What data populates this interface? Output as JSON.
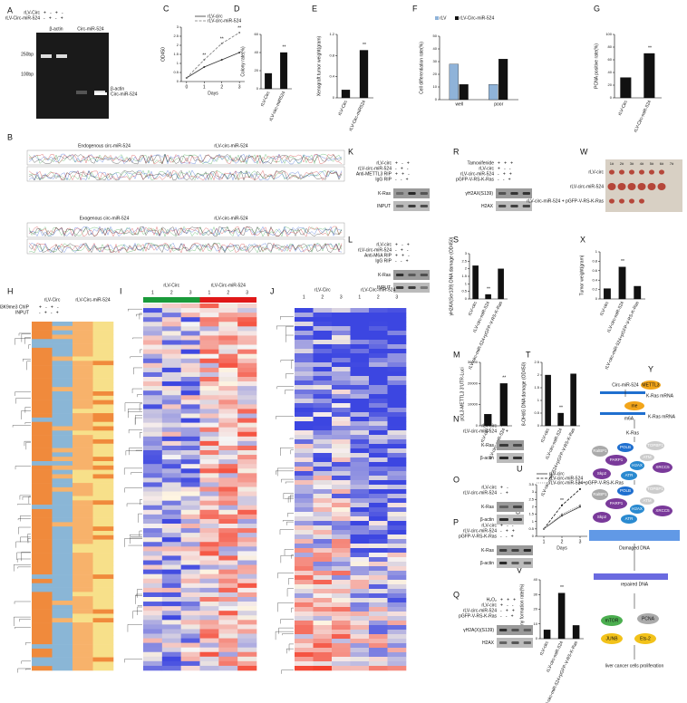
{
  "panel_letters": [
    "A",
    "C",
    "D",
    "E",
    "F",
    "G",
    "B",
    "K",
    "R",
    "W",
    "L",
    "S",
    "X",
    "H",
    "I",
    "J",
    "M",
    "T",
    "Y",
    "N",
    "O",
    "U",
    "P",
    "V",
    "Q"
  ],
  "chart_data": [
    {
      "type": "line",
      "ylabel": "OD450",
      "xlabel": "Days",
      "x": [
        0,
        1,
        2,
        3
      ],
      "xlim": [
        -0.3,
        3.3
      ],
      "xticks": [
        0,
        1,
        2,
        3
      ],
      "ylim": [
        0,
        3
      ],
      "yticks": [
        0,
        0.5,
        1,
        1.5,
        2,
        2.5,
        3
      ],
      "series": [
        {
          "name": "rLV-circ",
          "color": "#333333",
          "values": [
            0.2,
            0.8,
            1.2,
            1.6
          ]
        },
        {
          "name": "rLV-circ-miR-524",
          "color": "#777777",
          "values": [
            0.2,
            1.2,
            2.1,
            2.7
          ],
          "significance": [
            null,
            "**",
            "**",
            "**"
          ]
        }
      ]
    },
    {
      "type": "bar",
      "ylabel": "Colony rate(%)",
      "categories": [
        "rLV-Circ",
        "rLV-circ-miR524"
      ],
      "values": [
        17,
        40
      ],
      "color": "#111111",
      "ylim": [
        0,
        60
      ],
      "yticks": [
        0,
        20,
        40,
        60
      ],
      "significance": [
        null,
        "**"
      ]
    },
    {
      "type": "bar",
      "ylabel": "Xenograft tumor weight(gram)",
      "categories": [
        "rLV-Circ",
        "rLV-Circ-miR524"
      ],
      "values": [
        0.15,
        0.9
      ],
      "color": "#111111",
      "ylim": [
        0,
        1.2
      ],
      "yticks": [
        0,
        0.4,
        0.8,
        1.2
      ],
      "significance": [
        null,
        "**"
      ]
    },
    {
      "type": "bar",
      "ylabel": "Cell differentiation rate(%)",
      "categories": [
        "well",
        "poor"
      ],
      "ylim": [
        0,
        50
      ],
      "yticks": [
        0,
        10,
        20,
        30,
        40,
        50
      ],
      "series": [
        {
          "name": "rLV",
          "color": "#8fb3d9",
          "values": [
            28,
            12
          ]
        },
        {
          "name": "rLV-Circ-miR-524",
          "color": "#111111",
          "values": [
            12,
            32
          ]
        }
      ]
    },
    {
      "type": "bar",
      "ylabel": "PCNA positive rate(%)",
      "categories": [
        "rLV-Circ",
        "rLV-Circ-miR-524"
      ],
      "values": [
        32,
        70
      ],
      "color": "#111111",
      "ylim": [
        0,
        100
      ],
      "yticks": [
        0,
        20,
        40,
        60,
        80,
        100
      ],
      "significance": [
        null,
        "**"
      ]
    },
    {
      "type": "bar",
      "ylabel": "pGL3-METTL3 3'UTR-Luci",
      "categories": [
        "rLV-circ",
        "rLV-circ-miR-524"
      ],
      "values": [
        5500,
        20000
      ],
      "color": "#111111",
      "ylim": [
        0,
        30000
      ],
      "yticks": [
        0,
        10000,
        20000,
        30000
      ],
      "significance": [
        null,
        "**"
      ]
    },
    {
      "type": "bar",
      "ylabel": "γH2AX(Ser139) DNA damage (OD450)",
      "categories": [
        "rLV-circ",
        "rLV-circ-miR-524",
        "rLV-circ-miR-524+pGFP-V-RS-K-Ras"
      ],
      "values": [
        2.2,
        0.3,
        2.0
      ],
      "color": "#111111",
      "ylim": [
        0,
        3
      ],
      "yticks": [
        0,
        0.5,
        1,
        1.5,
        2,
        2.5,
        3
      ],
      "significance": [
        null,
        "**",
        null
      ]
    },
    {
      "type": "bar",
      "ylabel": "8-OHdG DNA damage (OD450)",
      "categories": [
        "rLV-circ",
        "rLV-circ-miR-524",
        "rLV-circ-miR-524+pGFP-V-RS-K-Ras"
      ],
      "values": [
        2.0,
        0.5,
        2.05
      ],
      "color": "#111111",
      "ylim": [
        0,
        2.5
      ],
      "yticks": [
        0,
        0.5,
        1,
        1.5,
        2,
        2.5
      ],
      "significance": [
        null,
        "**",
        null
      ]
    },
    {
      "type": "bar",
      "ylabel": "Tumor weight(gram)",
      "categories": [
        "rLV-circ",
        "rLV-circ-miR-524",
        "rLV-circ-miR-524+pGFP-V-RS-K-Ras"
      ],
      "values": [
        0.22,
        0.68,
        0.27
      ],
      "color": "#111111",
      "ylim": [
        0,
        1
      ],
      "yticks": [
        0,
        0.2,
        0.4,
        0.6,
        0.8,
        1
      ],
      "significance": [
        null,
        "**",
        null
      ]
    },
    {
      "type": "line",
      "ylabel": "OD450",
      "xlabel": "Days",
      "x": [
        1,
        2,
        3
      ],
      "xlim": [
        0.6,
        3.4
      ],
      "xticks": [
        1,
        2,
        3
      ],
      "ylim": [
        0,
        3.5
      ],
      "yticks": [
        0,
        0.5,
        1,
        1.5,
        2,
        2.5,
        3,
        3.5
      ],
      "series": [
        {
          "name": "rLV-circ",
          "color": "#333333",
          "values": [
            0.5,
            1.4,
            2.0
          ]
        },
        {
          "name": "rLV-circ-miR-524",
          "color": "#111111",
          "values": [
            0.5,
            2.1,
            3.2
          ],
          "significance": [
            null,
            "**",
            "**"
          ]
        },
        {
          "name": "rLV-circ-miR-524+pGFP-V-RS-K-Ras",
          "color": "#888888",
          "values": [
            0.5,
            1.5,
            2.1
          ]
        }
      ]
    },
    {
      "type": "bar",
      "ylabel": "Colony formation rate(%)",
      "categories": [
        "rLV-circ",
        "rLV-circ-miR-524",
        "rLV-circ-miR-524+pGFP-V-RS-K-Ras"
      ],
      "values": [
        6,
        31,
        9
      ],
      "color": "#111111",
      "ylim": [
        0,
        40
      ],
      "yticks": [
        0,
        10,
        20,
        30,
        40
      ],
      "significance": [
        null,
        "**",
        null
      ]
    }
  ],
  "blots": [
    {
      "rows": [
        {
          "label": "rLV-Circ",
          "signs": "+   -   +   -"
        },
        {
          "label": "rLV-Circ-miR-524",
          "signs": "-   +   -   +"
        }
      ],
      "columns": [
        "β-actin",
        "Circ-miR-524"
      ],
      "sizes": [
        "250bp",
        "100bp"
      ],
      "bands": [
        "β-actin",
        "Circ-miR-524"
      ]
    },
    {
      "rows": [
        {
          "label": "rLV-circ",
          "signs": "+   -   +"
        },
        {
          "label": "rLV-circ-miR-524",
          "signs": "-   +   -"
        },
        {
          "label": "Anti-METTL3 RIP",
          "signs": "+   +   -"
        },
        {
          "label": "IgG RIP",
          "signs": "-   -   +"
        }
      ],
      "bands": [
        "K-Ras",
        "INPUT"
      ]
    },
    {
      "rows": [
        {
          "label": "Tamoxifenide",
          "signs": "+   +   +"
        },
        {
          "label": "rLV-circ",
          "signs": "+   -   -"
        },
        {
          "label": "rLV-circ-miR-524",
          "signs": "-   +   +"
        },
        {
          "label": "pGFP-V-RS-K-Ras",
          "signs": "-   -   +"
        }
      ],
      "bands": [
        "γH2AX(S139)",
        "H2AX"
      ]
    },
    {
      "rows": [
        {
          "label": "rLV-circ",
          "signs": "+   -   +"
        },
        {
          "label": "rLV-circ-miR-524",
          "signs": "-   +   -"
        },
        {
          "label": "Anti-M6A RIP",
          "signs": "+   +   -"
        },
        {
          "label": "IgG RIP",
          "signs": "-   -   +"
        }
      ],
      "bands": [
        "K-Ras",
        "INPUT"
      ]
    },
    {
      "rows": [
        {
          "label": "rLV-circ",
          "signs": "+   -"
        },
        {
          "label": "rLV-circ-miR-524",
          "signs": "-   +"
        }
      ],
      "bands": [
        "K-Ras",
        "β-actin"
      ]
    },
    {
      "rows": [
        {
          "label": "rLV-circ",
          "signs": "+   -"
        },
        {
          "label": "rLV-circ-miR-524",
          "signs": "-   +"
        }
      ],
      "bands": [
        "K-Ras",
        "β-actin"
      ]
    },
    {
      "rows": [
        {
          "label": "rLV-circ",
          "signs": "+   -   -"
        },
        {
          "label": "rLV-circ-miR-524",
          "signs": "-   +   +"
        },
        {
          "label": "pGFP-V-RS-K-Ras",
          "signs": "-   -   +"
        }
      ],
      "bands": [
        "K-Ras",
        "β-actin"
      ]
    },
    {
      "rows": [
        {
          "label": "H₂O₂",
          "signs": "+   +   +"
        },
        {
          "label": "rLV-circ",
          "signs": "+   -   -"
        },
        {
          "label": "rLV-circ-miR-524",
          "signs": "-   +   +"
        },
        {
          "label": "pGFP-V-RS-K-Ras",
          "signs": "-   -   +"
        }
      ],
      "bands": [
        "γH2A(X)(S139)",
        "H2AX"
      ]
    }
  ],
  "tumor_photo": {
    "columns": [
      "1#",
      "2#",
      "3#",
      "4#",
      "5#",
      "6#",
      "7#"
    ],
    "rows": [
      "rLV-circ",
      "rLV-circ-miR-524",
      "rLV-circ-miR-524 + pGFP-V-RS-K-Ras"
    ]
  },
  "sequencing": [
    "Endogenous   circ-miR-524",
    "rLV-circ-miR-524",
    "Exogenous   circ-miR-524",
    "rLV-circ-miR-524"
  ],
  "heatmaps": [
    {
      "groups": [
        "rLV-Circ",
        "rLV-Circ-miR-524"
      ],
      "rows": [
        {
          "label": "Anti-H3K9me3 ChIP",
          "signs": "+   -   +   -"
        },
        {
          "label": "INPUT",
          "signs": "-   +   -   +"
        }
      ]
    },
    {
      "groups": [
        "rLV-Circ",
        "rLV-Circ-miR-524"
      ],
      "columns": [
        "1",
        "2",
        "3",
        "1",
        "2",
        "3"
      ]
    },
    {
      "groups": [
        "rLV-Circ",
        "rLV-Circ-miR-524"
      ],
      "columns": [
        "1",
        "2",
        "3",
        "1",
        "2",
        "3"
      ]
    }
  ],
  "diagram": {
    "top": [
      "Circ-miR-524",
      "METTL3",
      "K-Ras mRNA",
      "me",
      "m6A",
      "K-Ras mRNA",
      "K-Ras"
    ],
    "complex1": [
      "RalBP1",
      "POLB",
      "TOPBP1",
      "PARP1",
      "ATM",
      "H2AX",
      "XRCC5",
      "Skp2",
      "ATR"
    ],
    "complex2": [
      "RalBP1",
      "POLB",
      "TOPBP1",
      "PARP1",
      "ATM",
      "H2AX",
      "XRCC5",
      "Skp2",
      "ATR"
    ],
    "bottom": [
      "Damaged DNA",
      "repaired DNA",
      "mTOR",
      "PCNA",
      "JUNB",
      "Ets-2",
      "liver cancer cells proliferation"
    ]
  }
}
